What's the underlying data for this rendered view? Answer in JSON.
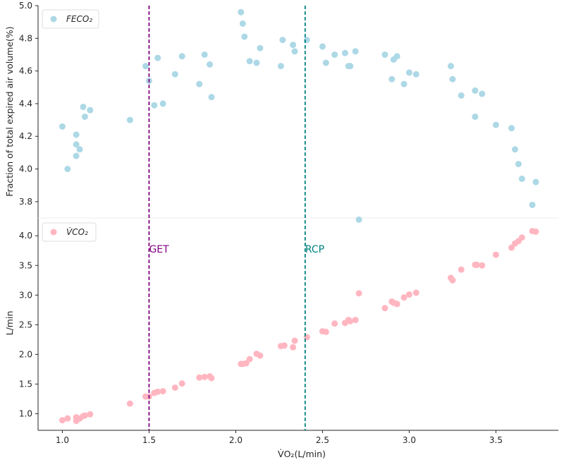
{
  "chart_data": {
    "type": "scatter",
    "xlabel": "V̇O₂(L/min)",
    "xlim": [
      0.86,
      3.86
    ],
    "xticks": [
      "1.0",
      "1.5",
      "2.0",
      "2.5",
      "3.0",
      "3.5"
    ],
    "xtick_values": [
      1.0,
      1.5,
      2.0,
      2.5,
      3.0,
      3.5
    ],
    "vlines": [
      {
        "x": 1.5,
        "label": "GET",
        "color": "#800080"
      },
      {
        "x": 2.4,
        "label": "RCP",
        "color": "#008080"
      }
    ],
    "panels": [
      {
        "name": "top",
        "ylabel": "Fraction of total expired air volume(%)",
        "ylim": [
          3.7,
          5.0
        ],
        "yticks": [
          "3.8",
          "4.0",
          "4.2",
          "4.4",
          "4.6",
          "4.8",
          "5.0"
        ],
        "ytick_values": [
          3.8,
          4.0,
          4.2,
          4.4,
          4.6,
          4.8,
          5.0
        ],
        "series": [
          {
            "name": "FECO₂",
            "color": "#add8e6",
            "points": [
              [
                1.0,
                4.26
              ],
              [
                1.03,
                4.0
              ],
              [
                1.08,
                4.08
              ],
              [
                1.08,
                4.21
              ],
              [
                1.08,
                4.15
              ],
              [
                1.1,
                4.12
              ],
              [
                1.12,
                4.38
              ],
              [
                1.13,
                4.32
              ],
              [
                1.16,
                4.36
              ],
              [
                1.39,
                4.3
              ],
              [
                1.48,
                4.63
              ],
              [
                1.5,
                4.54
              ],
              [
                1.53,
                4.39
              ],
              [
                1.55,
                4.68
              ],
              [
                1.58,
                4.4
              ],
              [
                1.65,
                4.58
              ],
              [
                1.69,
                4.69
              ],
              [
                1.79,
                4.52
              ],
              [
                1.82,
                4.7
              ],
              [
                1.85,
                4.64
              ],
              [
                1.86,
                4.44
              ],
              [
                2.03,
                4.96
              ],
              [
                2.04,
                4.89
              ],
              [
                2.05,
                4.81
              ],
              [
                2.08,
                4.66
              ],
              [
                2.12,
                4.65
              ],
              [
                2.14,
                4.74
              ],
              [
                2.26,
                4.63
              ],
              [
                2.27,
                4.79
              ],
              [
                2.33,
                4.76
              ],
              [
                2.34,
                4.72
              ],
              [
                2.41,
                4.79
              ],
              [
                2.5,
                4.75
              ],
              [
                2.52,
                4.65
              ],
              [
                2.57,
                4.7
              ],
              [
                2.63,
                4.71
              ],
              [
                2.65,
                4.63
              ],
              [
                2.66,
                4.63
              ],
              [
                2.69,
                4.72
              ],
              [
                2.71,
                3.69
              ],
              [
                2.86,
                4.7
              ],
              [
                2.9,
                4.55
              ],
              [
                2.91,
                4.67
              ],
              [
                2.93,
                4.69
              ],
              [
                2.97,
                4.52
              ],
              [
                3.0,
                4.59
              ],
              [
                3.04,
                4.58
              ],
              [
                3.24,
                4.63
              ],
              [
                3.25,
                4.55
              ],
              [
                3.3,
                4.45
              ],
              [
                3.38,
                4.48
              ],
              [
                3.38,
                4.32
              ],
              [
                3.42,
                4.46
              ],
              [
                3.5,
                4.27
              ],
              [
                3.59,
                4.25
              ],
              [
                3.61,
                4.12
              ],
              [
                3.63,
                4.03
              ],
              [
                3.65,
                3.94
              ],
              [
                3.71,
                3.78
              ],
              [
                3.73,
                3.92
              ]
            ]
          }
        ]
      },
      {
        "name": "bottom",
        "ylabel": "L/min",
        "ylim": [
          0.72,
          4.3
        ],
        "yticks": [
          "1.0",
          "1.5",
          "2.0",
          "2.5",
          "3.0",
          "3.5",
          "4.0"
        ],
        "ytick_values": [
          1.0,
          1.5,
          2.0,
          2.5,
          3.0,
          3.5,
          4.0
        ],
        "series": [
          {
            "name": "V̇CO₂",
            "color": "#ffb6c1",
            "points": [
              [
                1.0,
                0.89
              ],
              [
                1.03,
                0.92
              ],
              [
                1.08,
                0.88
              ],
              [
                1.08,
                0.94
              ],
              [
                1.09,
                0.91
              ],
              [
                1.1,
                0.92
              ],
              [
                1.12,
                0.96
              ],
              [
                1.13,
                0.97
              ],
              [
                1.16,
                0.99
              ],
              [
                1.39,
                1.17
              ],
              [
                1.48,
                1.29
              ],
              [
                1.5,
                1.29
              ],
              [
                1.53,
                1.35
              ],
              [
                1.55,
                1.37
              ],
              [
                1.58,
                1.38
              ],
              [
                1.65,
                1.44
              ],
              [
                1.69,
                1.51
              ],
              [
                1.79,
                1.61
              ],
              [
                1.82,
                1.62
              ],
              [
                1.85,
                1.63
              ],
              [
                1.86,
                1.6
              ],
              [
                2.03,
                1.84
              ],
              [
                2.04,
                1.84
              ],
              [
                2.06,
                1.85
              ],
              [
                2.08,
                1.92
              ],
              [
                2.12,
                2.01
              ],
              [
                2.14,
                1.98
              ],
              [
                2.26,
                2.14
              ],
              [
                2.28,
                2.15
              ],
              [
                2.33,
                2.12
              ],
              [
                2.34,
                2.23
              ],
              [
                2.41,
                2.29
              ],
              [
                2.5,
                2.39
              ],
              [
                2.52,
                2.38
              ],
              [
                2.57,
                2.52
              ],
              [
                2.63,
                2.53
              ],
              [
                2.65,
                2.58
              ],
              [
                2.66,
                2.56
              ],
              [
                2.69,
                2.58
              ],
              [
                2.71,
                3.03
              ],
              [
                2.86,
                2.78
              ],
              [
                2.9,
                2.89
              ],
              [
                2.91,
                2.87
              ],
              [
                2.93,
                2.85
              ],
              [
                2.97,
                2.96
              ],
              [
                3.0,
                3.01
              ],
              [
                3.04,
                3.04
              ],
              [
                3.24,
                3.29
              ],
              [
                3.25,
                3.25
              ],
              [
                3.3,
                3.43
              ],
              [
                3.38,
                3.51
              ],
              [
                3.39,
                3.51
              ],
              [
                3.42,
                3.5
              ],
              [
                3.5,
                3.68
              ],
              [
                3.59,
                3.8
              ],
              [
                3.61,
                3.87
              ],
              [
                3.63,
                3.91
              ],
              [
                3.65,
                3.97
              ],
              [
                3.71,
                4.08
              ],
              [
                3.73,
                4.07
              ]
            ]
          }
        ]
      }
    ]
  }
}
